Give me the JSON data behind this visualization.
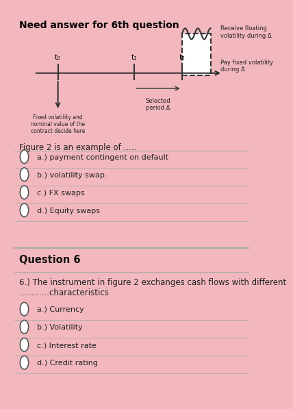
{
  "title": "Need answer for 6th question",
  "title_fontsize": 10,
  "bg_color": "#f2b8be",
  "panel_color": "#d4d4d4",
  "fig_title_color": "#000000",
  "diagram": {
    "arrow_color": "#333333",
    "t0_label": "t₀",
    "t1_label": "t₁",
    "t2_label": "t₂",
    "squiggle_color": "#333333",
    "receive_label": "Receive floating\nvolatility during Δ",
    "pay_label": "Pay fixed volatility\nduring Δ",
    "selected_label": "Selected\nperiod Δ",
    "fixed_label": "Fixed volatility and\nnominal value of the\ncontract decide here"
  },
  "figure_q_text": "Figure 2 is an example of .....",
  "q_options_fig": [
    "a.) payment contingent on default",
    "b.) volatility swap.",
    "c.) FX swaps",
    "d.) Equity swaps"
  ],
  "q6_header": "Question 6",
  "q6_text": "6.) The instrument in figure 2 exchanges cash flows with different\n............characteristics",
  "q6_options": [
    "a.) Currency",
    "b.) Volatility",
    "c.) Interest rate",
    "d.) Credit rating"
  ],
  "separator_color": "#aaaaaa",
  "option_text_color": "#222222",
  "radio_color": "#555555"
}
